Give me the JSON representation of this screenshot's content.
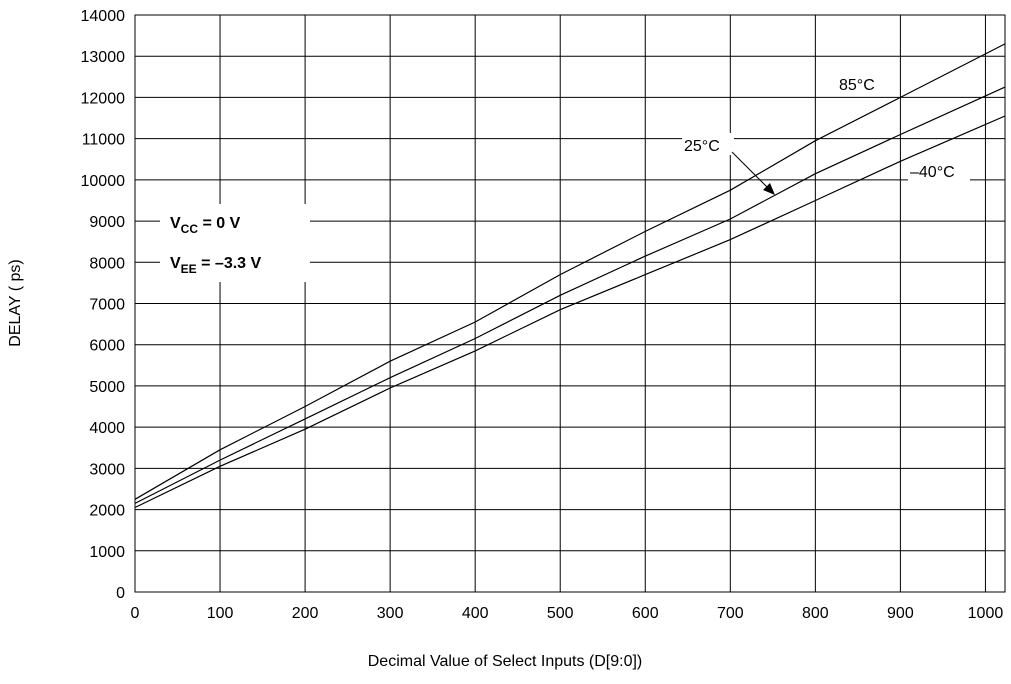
{
  "chart_data": {
    "type": "line",
    "xlabel": "Decimal Value of Select Inputs (D[9:0])",
    "ylabel": "DELAY ( ps)",
    "xlim": [
      0,
      1023
    ],
    "ylim": [
      0,
      14000
    ],
    "xticks": [
      0,
      100,
      200,
      300,
      400,
      500,
      600,
      700,
      800,
      900,
      1000
    ],
    "yticks": [
      0,
      1000,
      2000,
      3000,
      4000,
      5000,
      6000,
      7000,
      8000,
      9000,
      10000,
      11000,
      12000,
      13000,
      14000
    ],
    "grid": true,
    "annotations": {
      "vcc": {
        "main": "V",
        "sub": "CC",
        "rest": " = 0 V"
      },
      "vee": {
        "main": "V",
        "sub": "EE",
        "rest": " = –3.3 V"
      }
    },
    "series": [
      {
        "name": "85°C",
        "color": "#000000",
        "x": [
          0,
          100,
          200,
          300,
          400,
          500,
          600,
          700,
          800,
          900,
          1023
        ],
        "y": [
          2250,
          3450,
          4500,
          5600,
          6550,
          7700,
          8750,
          9750,
          10950,
          12000,
          13300
        ]
      },
      {
        "name": "25°C",
        "color": "#000000",
        "x": [
          0,
          100,
          200,
          300,
          400,
          500,
          600,
          700,
          800,
          900,
          1023
        ],
        "y": [
          2150,
          3200,
          4200,
          5200,
          6150,
          7200,
          8150,
          9050,
          10150,
          11100,
          12250
        ]
      },
      {
        "name": "–40°C",
        "color": "#000000",
        "x": [
          0,
          100,
          200,
          300,
          400,
          500,
          600,
          700,
          800,
          900,
          1023
        ],
        "y": [
          2050,
          3050,
          3950,
          4950,
          5850,
          6850,
          7700,
          8550,
          9500,
          10450,
          11550
        ]
      }
    ]
  }
}
